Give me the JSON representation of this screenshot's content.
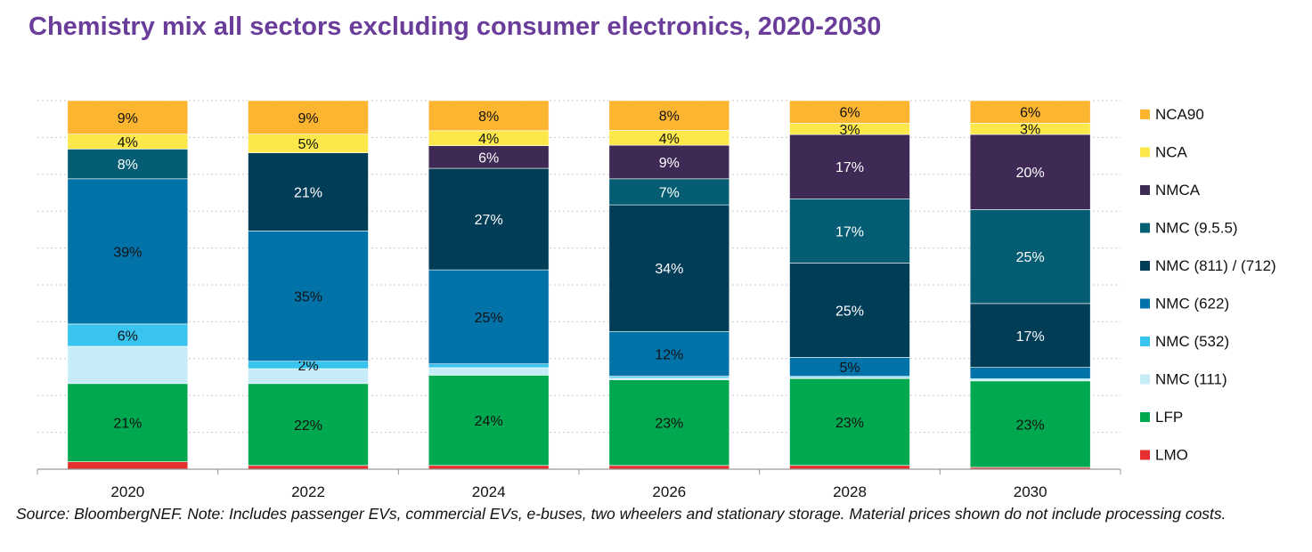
{
  "chart_data": {
    "type": "bar",
    "stacked": true,
    "title": "Chemistry mix all sectors excluding consumer electronics, 2020-2030",
    "xlabel": "",
    "ylabel": "",
    "ylim": [
      0,
      100
    ],
    "grid": true,
    "legend_position": "right",
    "categories": [
      "2020",
      "2022",
      "2024",
      "2026",
      "2028",
      "2030"
    ],
    "series": [
      {
        "name": "LMO",
        "color": "#e63030",
        "values": [
          2,
          1,
          1,
          1,
          1,
          0.5
        ],
        "labels": [
          "",
          "",
          "",
          "",
          "",
          ""
        ]
      },
      {
        "name": "LFP",
        "color": "#00a84f",
        "values": [
          21,
          22,
          24,
          23,
          23,
          23
        ],
        "labels": [
          "21%",
          "22%",
          "24%",
          "23%",
          "23%",
          "23%"
        ]
      },
      {
        "name": "NMC (111)",
        "color": "#c6ecf7",
        "values": [
          10,
          4,
          2,
          0.5,
          0.3,
          0.3
        ],
        "labels": [
          "",
          "",
          "",
          "",
          "",
          ""
        ]
      },
      {
        "name": "NMC (532)",
        "color": "#39c3ef",
        "values": [
          6,
          2,
          1,
          0.5,
          0.3,
          0.3
        ],
        "labels": [
          "6%",
          "2%",
          "",
          "",
          "",
          ""
        ]
      },
      {
        "name": "NMC (622)",
        "color": "#0273a8",
        "values": [
          39,
          35,
          25,
          12,
          5,
          3
        ],
        "labels": [
          "39%",
          "35%",
          "25%",
          "12%",
          "5%",
          ""
        ]
      },
      {
        "name": "NMC (811) / (712)",
        "color": "#023d58",
        "values": [
          0,
          21,
          27,
          34,
          25,
          17
        ],
        "labels": [
          "",
          "21%",
          "27%",
          "34%",
          "25%",
          "17%"
        ]
      },
      {
        "name": "NMC (9.5.5)",
        "color": "#055d74",
        "values": [
          8,
          0,
          0,
          7,
          17,
          25
        ],
        "labels": [
          "8%",
          "",
          "",
          "7%",
          "17%",
          "25%"
        ]
      },
      {
        "name": "NMCA",
        "color": "#3e2a55",
        "values": [
          0,
          0,
          6,
          9,
          17,
          20
        ],
        "labels": [
          "",
          "",
          "6%",
          "9%",
          "17%",
          "20%"
        ]
      },
      {
        "name": "NCA",
        "color": "#fce84a",
        "values": [
          4,
          5,
          4,
          4,
          3,
          3
        ],
        "labels": [
          "4%",
          "5%",
          "4%",
          "4%",
          "3%",
          "3%"
        ]
      },
      {
        "name": "NCA90",
        "color": "#fbb531",
        "values": [
          9,
          9,
          8,
          8,
          6,
          6
        ],
        "labels": [
          "9%",
          "9%",
          "8%",
          "8%",
          "6%",
          "6%"
        ]
      }
    ]
  },
  "footnote": "Source: BloombergNEF. Note: Includes passenger EVs, commercial EVs, e-buses, two wheelers and stationary storage. Material prices shown do not include processing costs."
}
